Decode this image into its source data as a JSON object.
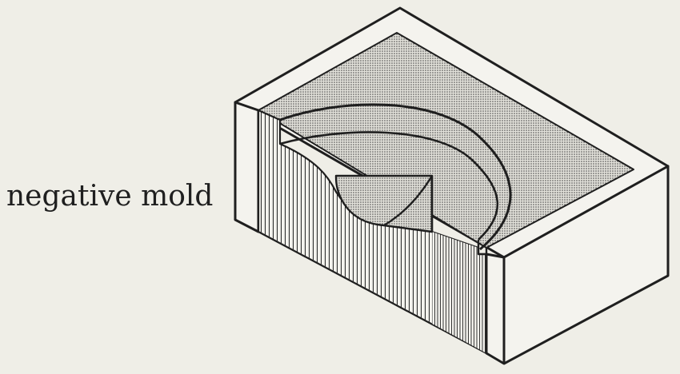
{
  "caption": "negative mold",
  "colors": {
    "paper": "#efeee7",
    "ink": "#1f1f1f",
    "stipple_fill": "#c9c8c2",
    "face_light": "#f4f3ee"
  }
}
